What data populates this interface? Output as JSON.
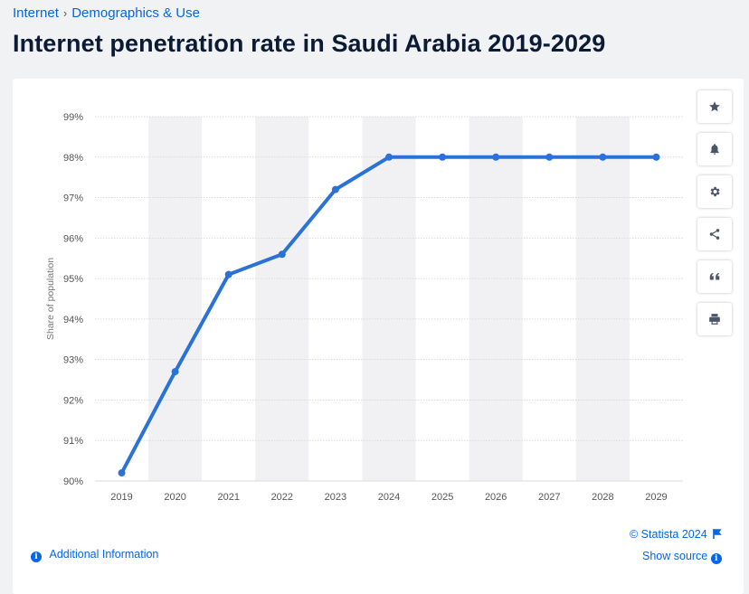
{
  "breadcrumb": {
    "item1": "Internet",
    "separator": "›",
    "item2": "Demographics & Use"
  },
  "title": "Internet penetration rate in Saudi Arabia 2019-2029",
  "footer": {
    "copyright": "© Statista 2024",
    "show_source": "Show source",
    "additional_info": "Additional Information"
  },
  "toolbar": {
    "icons": [
      "star-icon",
      "bell-icon",
      "gear-icon",
      "share-icon",
      "quote-icon",
      "print-icon"
    ]
  },
  "colors": {
    "line": "#2a72d5",
    "accent": "#0666e5",
    "band": "#f1f1f3",
    "grid": "#dadada"
  },
  "chart_data": {
    "type": "line",
    "categories": [
      "2019",
      "2020",
      "2021",
      "2022",
      "2023",
      "2024",
      "2025",
      "2026",
      "2027",
      "2028",
      "2029"
    ],
    "values": [
      90.2,
      92.7,
      95.1,
      95.6,
      97.2,
      98.0,
      98.0,
      98.0,
      98.0,
      98.0,
      98.0
    ],
    "ylabel": "Share of population",
    "xlabel": "",
    "ylim": [
      90,
      99
    ],
    "yticks": [
      "90%",
      "91%",
      "92%",
      "93%",
      "94%",
      "95%",
      "96%",
      "97%",
      "98%",
      "99%"
    ],
    "grid": true,
    "legend": "none"
  }
}
